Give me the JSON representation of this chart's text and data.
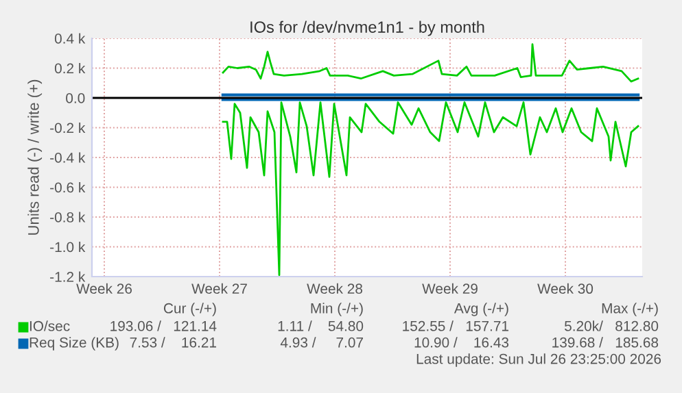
{
  "chart_data": {
    "type": "line",
    "title": "IOs for /dev/nvme1n1 - by month",
    "ylabel": "Units read (-) / write (+)",
    "xlim": [
      "2026-06-23T18:00",
      "2026-07-27T04:00"
    ],
    "ylim": [
      -1200,
      400
    ],
    "xticks": [
      {
        "value": "2026-06-24T12:00",
        "label": "Week 26"
      },
      {
        "value": "2026-07-01T12:00",
        "label": "Week 27"
      },
      {
        "value": "2026-07-08T12:00",
        "label": "Week 28"
      },
      {
        "value": "2026-07-15T12:00",
        "label": "Week 29"
      },
      {
        "value": "2026-07-22T12:00",
        "label": "Week 30"
      }
    ],
    "yticks": [
      {
        "value": 400,
        "label": "0.4 k"
      },
      {
        "value": 200,
        "label": "0.2 k"
      },
      {
        "value": 0,
        "label": "0.0"
      },
      {
        "value": -200,
        "label": "-0.2 k"
      },
      {
        "value": -400,
        "label": "-0.4 k"
      },
      {
        "value": -600,
        "label": "-0.6 k"
      },
      {
        "value": -800,
        "label": "-0.8 k"
      },
      {
        "value": -1000,
        "label": "-1.0 k"
      },
      {
        "value": -1200,
        "label": "-1.2 k"
      }
    ],
    "grid": true,
    "legend": "bottom",
    "ref_lines": [
      {
        "axis": "y",
        "value": 0,
        "label": null,
        "color": "#000000"
      }
    ],
    "series": [
      {
        "name": "IO/sec",
        "color": "#00cc00",
        "x": [
          "2026-07-01T17:00",
          "2026-07-02T01:00",
          "2026-07-02T14:00",
          "2026-07-03T07:00",
          "2026-07-03T17:00",
          "2026-07-04T00:00",
          "2026-07-04T05:00",
          "2026-07-04T10:00",
          "2026-07-04T14:00",
          "2026-07-04T19:00",
          "2026-07-05T10:00",
          "2026-07-06T12:00",
          "2026-07-07T14:00",
          "2026-07-08T00:00",
          "2026-07-08T05:00",
          "2026-07-09T07:00",
          "2026-07-10T02:00",
          "2026-07-11T10:00",
          "2026-07-12T02:00",
          "2026-07-13T05:00",
          "2026-07-14T19:00",
          "2026-07-15T00:00",
          "2026-07-15T22:00",
          "2026-07-16T12:00",
          "2026-07-16T19:00",
          "2026-07-18T05:00",
          "2026-07-19T14:00",
          "2026-07-19T19:00",
          "2026-07-20T10:00",
          "2026-07-20T12:00",
          "2026-07-20T17:00",
          "2026-07-22T07:00",
          "2026-07-22T18:00",
          "2026-07-23T05:00",
          "2026-07-24T00:00",
          "2026-07-24T19:00",
          "2026-07-25T22:00",
          "2026-07-26T12:00",
          "2026-07-26T22:00"
        ],
        "values": [
          170,
          210,
          200,
          210,
          190,
          130,
          210,
          310,
          240,
          160,
          150,
          160,
          180,
          200,
          150,
          150,
          130,
          180,
          150,
          160,
          250,
          160,
          150,
          210,
          150,
          150,
          200,
          140,
          150,
          360,
          150,
          150,
          250,
          190,
          200,
          210,
          180,
          110,
          130
        ]
      },
      {
        "color": "#00cc00",
        "x": [
          "2026-07-01T17:00",
          "2026-07-01T23:00",
          "2026-07-02T05:00",
          "2026-07-02T10:00",
          "2026-07-02T18:00",
          "2026-07-03T04:00",
          "2026-07-03T09:00",
          "2026-07-03T21:00",
          "2026-07-04T05:00",
          "2026-07-04T10:00",
          "2026-07-04T20:00",
          "2026-07-05T03:00",
          "2026-07-05T06:00",
          "2026-07-05T19:00",
          "2026-07-06T04:00",
          "2026-07-06T09:00",
          "2026-07-06T19:00",
          "2026-07-07T05:00",
          "2026-07-07T15:00",
          "2026-07-08T04:00",
          "2026-07-08T11:00",
          "2026-07-09T05:00",
          "2026-07-09T10:00",
          "2026-07-10T03:00",
          "2026-07-10T09:00",
          "2026-07-11T05:00",
          "2026-07-12T01:00",
          "2026-07-12T08:00",
          "2026-07-13T04:00",
          "2026-07-13T14:00",
          "2026-07-14T07:00",
          "2026-07-14T20:00",
          "2026-07-15T06:00",
          "2026-07-15T23:00",
          "2026-07-16T09:00",
          "2026-07-17T05:00",
          "2026-07-17T15:00",
          "2026-07-18T04:00",
          "2026-07-18T17:00",
          "2026-07-19T13:00",
          "2026-07-19T23:00",
          "2026-07-20T09:00",
          "2026-07-20T23:00",
          "2026-07-21T09:00",
          "2026-07-21T22:00",
          "2026-07-22T08:00",
          "2026-07-22T21:00",
          "2026-07-23T11:00",
          "2026-07-24T03:00",
          "2026-07-24T10:00",
          "2026-07-25T03:00",
          "2026-07-25T06:00",
          "2026-07-25T13:00",
          "2026-07-26T04:00",
          "2026-07-26T12:00",
          "2026-07-26T22:00"
        ],
        "values": [
          -160,
          -160,
          -410,
          -40,
          -100,
          -470,
          -130,
          -230,
          -520,
          -90,
          -230,
          -1190,
          -30,
          -260,
          -500,
          -30,
          -190,
          -520,
          -30,
          -530,
          -40,
          -520,
          -130,
          -230,
          -40,
          -160,
          -240,
          -30,
          -180,
          -70,
          -230,
          -290,
          -30,
          -230,
          -30,
          -260,
          -30,
          -230,
          -130,
          -190,
          -30,
          -380,
          -130,
          -230,
          -70,
          -230,
          -70,
          -230,
          -290,
          -70,
          -260,
          -420,
          -160,
          -460,
          -230,
          -190
        ]
      },
      {
        "name": "Req Size (KB)",
        "color": "#0066b3",
        "x": [
          "2026-07-01T17:00",
          "2026-07-05T00:00",
          "2026-07-12T00:00",
          "2026-07-18T12:00",
          "2026-07-24T00:00",
          "2026-07-26T22:00"
        ],
        "values": [
          20,
          20,
          20,
          20,
          20,
          20
        ]
      },
      {
        "color": "#0066b3",
        "x": [
          "2026-07-01T17:00",
          "2026-07-05T00:00",
          "2026-07-12T00:00",
          "2026-07-18T12:00",
          "2026-07-24T00:00",
          "2026-07-26T22:00"
        ],
        "values": [
          -10,
          -10,
          -10,
          -10,
          -10,
          -10
        ]
      }
    ],
    "annotations": [
      "Cur (-/+)",
      "Min (-/+)",
      "Avg (-/+)",
      "Max (-/+)",
      "193.06 /   121.14",
      "1.11 /    54.80",
      "152.55 /   157.71",
      "5.20k/   812.80",
      "7.53 /    16.21",
      "4.93 /     7.07",
      "10.90 /    16.43",
      "139.68 /   185.68",
      "Last update: Sun Jul 26 23:25:00 2026"
    ]
  }
}
